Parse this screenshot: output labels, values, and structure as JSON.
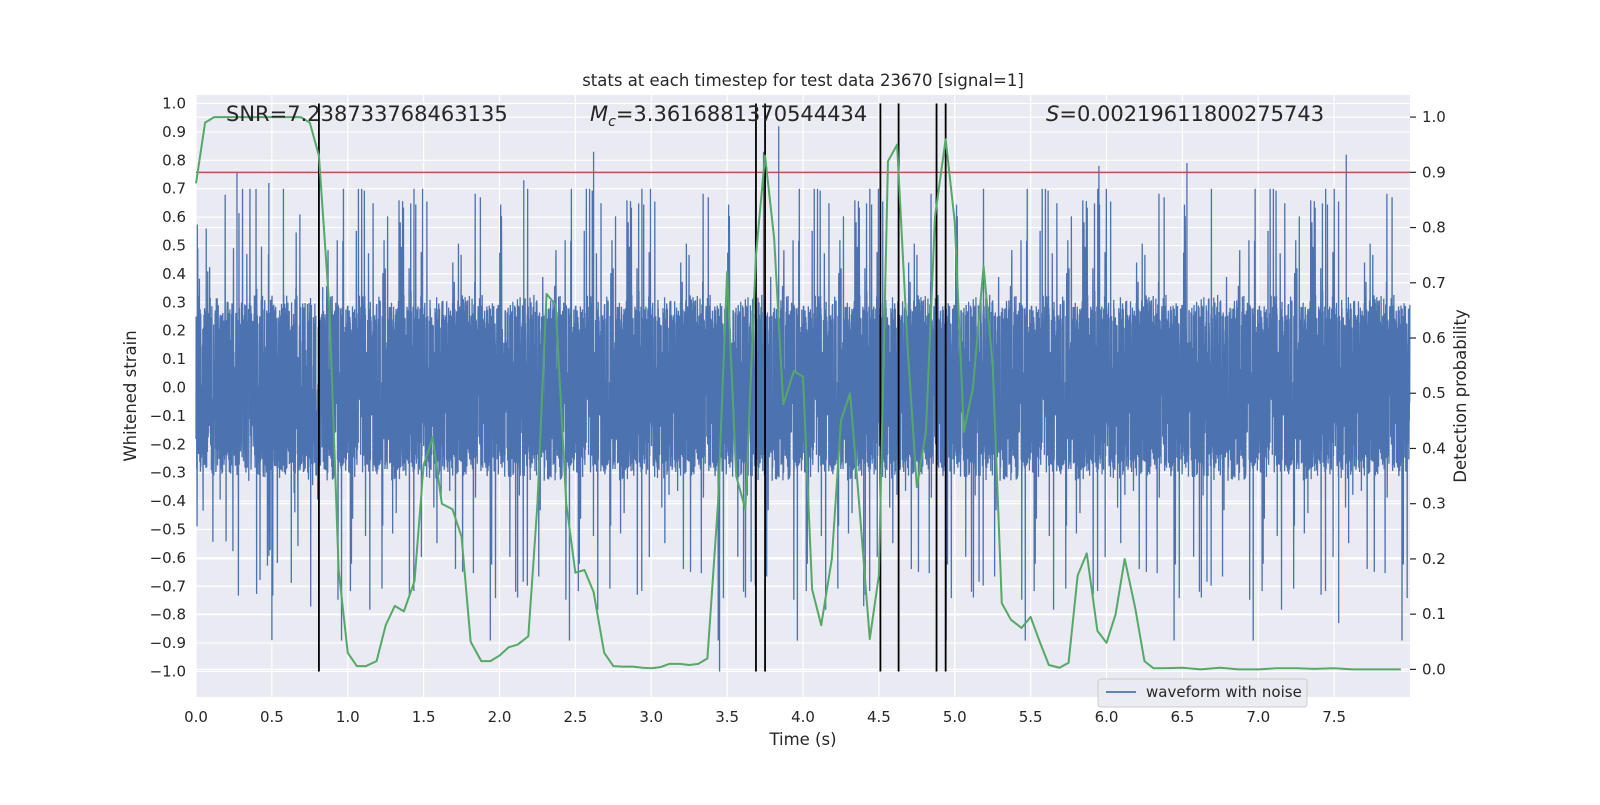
{
  "chart_data": {
    "type": "line",
    "title": "stats at each timestep for test data 23670 [signal=1]",
    "xlabel": "Time (s)",
    "ylabel_left": "Whitened strain",
    "ylabel_right": "Detection probability",
    "xlim": [
      0.0,
      8.0
    ],
    "ylim_left": [
      -1.09,
      1.03
    ],
    "ylim_right": [
      -0.05,
      1.04
    ],
    "x_ticks": [
      0.0,
      0.5,
      1.0,
      1.5,
      2.0,
      2.5,
      3.0,
      3.5,
      4.0,
      4.5,
      5.0,
      5.5,
      6.0,
      6.5,
      7.0,
      7.5
    ],
    "x_tick_labels": [
      "0.0",
      "0.5",
      "1.0",
      "1.5",
      "2.0",
      "2.5",
      "3.0",
      "3.5",
      "4.0",
      "4.5",
      "5.0",
      "5.5",
      "6.0",
      "6.5",
      "7.0",
      "7.5"
    ],
    "y_left_ticks": [
      1.0,
      0.9,
      0.8,
      0.7,
      0.6,
      0.5,
      0.4,
      0.3,
      0.2,
      0.1,
      0.0,
      -0.1,
      -0.2,
      -0.3,
      -0.4,
      -0.5,
      -0.6,
      -0.7,
      -0.8,
      -0.9,
      -1.0
    ],
    "y_left_tick_labels": [
      "1.0",
      "0.9",
      "0.8",
      "0.7",
      "0.6",
      "0.5",
      "0.4",
      "0.3",
      "0.2",
      "0.1",
      "0.0",
      "−0.1",
      "−0.2",
      "−0.3",
      "−0.4",
      "−0.5",
      "−0.6",
      "−0.7",
      "−0.8",
      "−0.9",
      "−1.0"
    ],
    "y_right_ticks": [
      1.0,
      0.9,
      0.8,
      0.7,
      0.6,
      0.5,
      0.4,
      0.3,
      0.2,
      0.1,
      0.0
    ],
    "y_right_tick_labels": [
      "1.0",
      "0.9",
      "0.8",
      "0.7",
      "0.6",
      "0.5",
      "0.4",
      "0.3",
      "0.2",
      "0.1",
      "0.0"
    ],
    "annotations": {
      "snr": "SNR=7.238733768463135",
      "mc_symbol": "M",
      "mc_sub": "c",
      "mc_value": "=3.3616881370544434",
      "s_symbol": "S",
      "s_value": "=0.00219611800275743"
    },
    "legend": {
      "label": "waveform with noise",
      "location": "lower-right"
    },
    "colors": {
      "waveform": "#4c72b0",
      "probability": "#55a868",
      "threshold": "#c44e52",
      "marker": "#000000",
      "plot_bg": "#eaeaf2",
      "grid": "#ffffff"
    },
    "threshold": 0.9,
    "vertical_markers": [
      0.81,
      3.69,
      3.75,
      4.51,
      4.63,
      4.88,
      4.94
    ],
    "series": [
      {
        "name": "waveform with noise",
        "axis": "left",
        "sample_rate_hz": 1024,
        "duration_s": 8.0,
        "envelope": {
          "core_abs": 0.31,
          "typical_max": 0.6,
          "max": 0.92,
          "min": -1.0
        },
        "notable_peaks": [
          {
            "t": 0.27,
            "v": 0.76
          },
          {
            "t": 0.48,
            "v": 0.72
          },
          {
            "t": 2.16,
            "v": 0.73
          },
          {
            "t": 2.62,
            "v": 0.83
          },
          {
            "t": 3.74,
            "v": 0.83
          },
          {
            "t": 3.84,
            "v": 0.92
          },
          {
            "t": 4.63,
            "v": 0.8
          },
          {
            "t": 5.95,
            "v": 0.78
          },
          {
            "t": 6.53,
            "v": 0.79
          },
          {
            "t": 7.58,
            "v": 0.82
          },
          {
            "t": 0.5,
            "v": -0.89
          },
          {
            "t": 3.45,
            "v": -1.0
          },
          {
            "t": 7.53,
            "v": -0.83
          },
          {
            "t": 4.4,
            "v": -0.77
          }
        ]
      },
      {
        "name": "detection probability",
        "axis": "right",
        "x": [
          0.0,
          0.06,
          0.12,
          0.19,
          0.25,
          0.31,
          0.37,
          0.44,
          0.5,
          0.56,
          0.62,
          0.69,
          0.75,
          0.81,
          0.88,
          0.94,
          1.0,
          1.06,
          1.12,
          1.19,
          1.25,
          1.31,
          1.37,
          1.44,
          1.5,
          1.56,
          1.62,
          1.69,
          1.75,
          1.81,
          1.88,
          1.94,
          2.0,
          2.06,
          2.12,
          2.19,
          2.25,
          2.31,
          2.37,
          2.44,
          2.5,
          2.56,
          2.62,
          2.69,
          2.75,
          2.81,
          2.88,
          2.94,
          3.0,
          3.06,
          3.12,
          3.19,
          3.25,
          3.31,
          3.37,
          3.44,
          3.5,
          3.56,
          3.62,
          3.69,
          3.75,
          3.81,
          3.87,
          3.94,
          4.0,
          4.06,
          4.12,
          4.19,
          4.25,
          4.31,
          4.37,
          4.44,
          4.5,
          4.56,
          4.62,
          4.69,
          4.75,
          4.81,
          4.87,
          4.94,
          5.0,
          5.06,
          5.12,
          5.19,
          5.25,
          5.31,
          5.37,
          5.44,
          5.5,
          5.56,
          5.62,
          5.69,
          5.75,
          5.81,
          5.87,
          5.94,
          6.0,
          6.06,
          6.12,
          6.19,
          6.25,
          6.31,
          6.37,
          6.5,
          6.62,
          6.75,
          6.87,
          7.0,
          7.12,
          7.25,
          7.37,
          7.5,
          7.62,
          7.75,
          7.87,
          7.94
        ],
        "y": [
          0.88,
          0.99,
          1.0,
          1.0,
          1.0,
          1.0,
          1.0,
          1.0,
          1.0,
          1.0,
          1.0,
          1.0,
          0.99,
          0.93,
          0.65,
          0.18,
          0.03,
          0.006,
          0.006,
          0.015,
          0.08,
          0.115,
          0.105,
          0.16,
          0.37,
          0.42,
          0.3,
          0.29,
          0.24,
          0.05,
          0.015,
          0.015,
          0.025,
          0.04,
          0.045,
          0.06,
          0.3,
          0.68,
          0.66,
          0.3,
          0.175,
          0.18,
          0.14,
          0.03,
          0.006,
          0.005,
          0.005,
          0.003,
          0.002,
          0.004,
          0.01,
          0.01,
          0.008,
          0.01,
          0.02,
          0.3,
          0.72,
          0.35,
          0.29,
          0.75,
          0.93,
          0.78,
          0.48,
          0.54,
          0.53,
          0.145,
          0.08,
          0.2,
          0.45,
          0.5,
          0.3,
          0.055,
          0.17,
          0.92,
          0.95,
          0.58,
          0.33,
          0.43,
          0.82,
          0.96,
          0.81,
          0.43,
          0.51,
          0.73,
          0.55,
          0.12,
          0.09,
          0.075,
          0.095,
          0.05,
          0.008,
          0.003,
          0.012,
          0.17,
          0.21,
          0.07,
          0.048,
          0.1,
          0.2,
          0.11,
          0.015,
          0.002,
          0.002,
          0.003,
          0.0,
          0.003,
          0.0,
          0.0,
          0.002,
          0.002,
          0.001,
          0.002,
          0.0,
          0.0,
          0.0,
          0.0
        ]
      }
    ]
  }
}
